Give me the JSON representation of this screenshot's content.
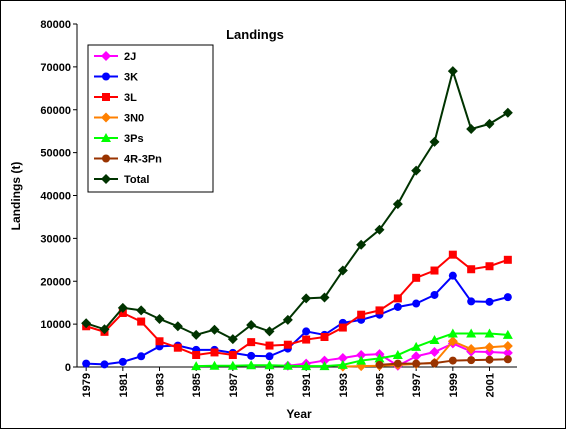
{
  "chart_data": {
    "type": "line",
    "title": "Landings",
    "xlabel": "Year",
    "ylabel": "Landings (t)",
    "x": [
      1979,
      1980,
      1981,
      1982,
      1983,
      1984,
      1985,
      1986,
      1987,
      1988,
      1989,
      1990,
      1991,
      1992,
      1993,
      1994,
      1995,
      1996,
      1997,
      1998,
      1999,
      2000,
      2001,
      2002
    ],
    "xlim": [
      1978.5,
      2002.5
    ],
    "xticks": [
      1979,
      1981,
      1983,
      1985,
      1987,
      1989,
      1991,
      1993,
      1995,
      1997,
      1999,
      2001
    ],
    "ylim": [
      0,
      80000
    ],
    "yticks": [
      0,
      10000,
      20000,
      30000,
      40000,
      50000,
      60000,
      70000,
      80000
    ],
    "legend": "upper left",
    "series": [
      {
        "name": "2J",
        "color": "#ff00ff",
        "marker": "diamond",
        "values": [
          null,
          null,
          null,
          null,
          null,
          null,
          null,
          null,
          null,
          null,
          null,
          300,
          800,
          1500,
          2100,
          2800,
          3000,
          300,
          2500,
          3500,
          5500,
          3600,
          3500,
          3300
        ]
      },
      {
        "name": "3K",
        "color": "#0000ff",
        "marker": "circle",
        "values": [
          800,
          600,
          1200,
          2500,
          4800,
          5000,
          4000,
          4000,
          3300,
          2600,
          2500,
          4300,
          8300,
          7500,
          10300,
          11000,
          12200,
          14000,
          14800,
          16800,
          21300,
          15300,
          15200,
          16300
        ]
      },
      {
        "name": "3L",
        "color": "#ff0000",
        "marker": "square",
        "values": [
          9500,
          8200,
          12600,
          10600,
          6000,
          4500,
          2800,
          3400,
          2800,
          5800,
          5000,
          5200,
          6400,
          7000,
          9200,
          12200,
          13200,
          16000,
          20800,
          22500,
          26200,
          22800,
          23500,
          25000
        ]
      },
      {
        "name": "3N0",
        "color": "#ff8000",
        "marker": "diamond",
        "values": [
          null,
          null,
          null,
          null,
          null,
          null,
          null,
          null,
          null,
          null,
          null,
          null,
          null,
          null,
          100,
          200,
          300,
          500,
          700,
          1000,
          6000,
          4200,
          4600,
          4900
        ]
      },
      {
        "name": "3Ps",
        "color": "#00ff00",
        "marker": "triangle",
        "values": [
          null,
          null,
          null,
          null,
          null,
          null,
          200,
          300,
          300,
          400,
          400,
          300,
          200,
          200,
          500,
          1500,
          2000,
          2800,
          4700,
          6300,
          7800,
          7800,
          7800,
          7500
        ]
      },
      {
        "name": "4R-3Pn",
        "color": "#993300",
        "marker": "circle",
        "values": [
          null,
          null,
          null,
          null,
          null,
          null,
          null,
          null,
          null,
          null,
          null,
          null,
          null,
          null,
          null,
          null,
          500,
          800,
          800,
          900,
          1500,
          1600,
          1700,
          1800
        ]
      },
      {
        "name": "Total",
        "color": "#003300",
        "marker": "diamond",
        "values": [
          10200,
          8800,
          13800,
          13200,
          11200,
          9500,
          7500,
          8700,
          6500,
          9800,
          8300,
          11000,
          16000,
          16200,
          22500,
          28500,
          32000,
          38000,
          45800,
          52500,
          69000,
          55500,
          56700,
          59300
        ]
      }
    ]
  }
}
